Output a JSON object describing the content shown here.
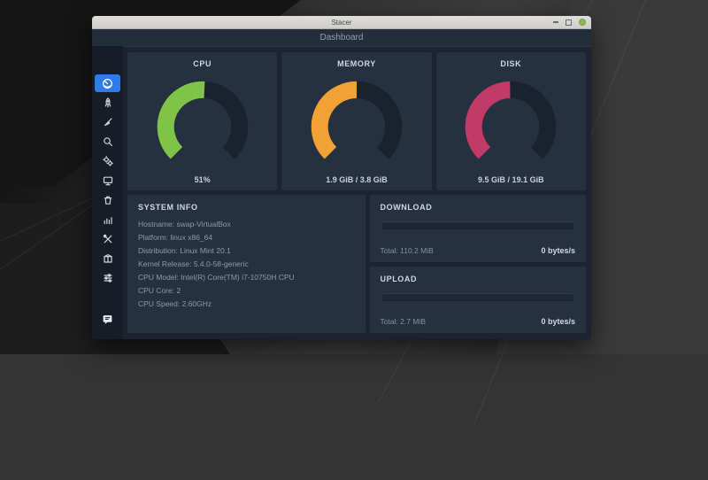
{
  "window": {
    "title": "Stacer",
    "controls": {
      "minimize": "minimize",
      "maximize": "maximize",
      "close": "close"
    }
  },
  "header": {
    "title": "Dashboard"
  },
  "sidebar": {
    "items": [
      {
        "id": "dashboard",
        "icon": "speedometer-icon",
        "active": true
      },
      {
        "id": "startup-apps",
        "icon": "rocket-icon",
        "active": false
      },
      {
        "id": "system-cleaner",
        "icon": "broom-icon",
        "active": false
      },
      {
        "id": "search",
        "icon": "search-icon",
        "active": false
      },
      {
        "id": "services",
        "icon": "gears-icon",
        "active": false
      },
      {
        "id": "processes",
        "icon": "monitor-icon",
        "active": false
      },
      {
        "id": "uninstaller",
        "icon": "trash-icon",
        "active": false
      },
      {
        "id": "resources",
        "icon": "chart-icon",
        "active": false
      },
      {
        "id": "helpers",
        "icon": "tools-icon",
        "active": false
      },
      {
        "id": "apt-repository",
        "icon": "package-icon",
        "active": false
      },
      {
        "id": "settings",
        "icon": "sliders-icon",
        "active": false
      }
    ],
    "bottom_item": {
      "id": "feedback",
      "icon": "feedback-icon"
    }
  },
  "gauges": [
    {
      "title": "CPU",
      "value_label": "51%",
      "percent": 51.0,
      "color": "#7fc348"
    },
    {
      "title": "MEMORY",
      "value_label": "1.9 GiB / 3.8 GiB",
      "percent": 50.0,
      "color": "#f2a235"
    },
    {
      "title": "DISK",
      "value_label": "9.5 GiB / 19.1 GiB",
      "percent": 49.7,
      "color": "#c23a68"
    }
  ],
  "gauge_style": {
    "track_color": "#1a222e"
  },
  "system_info": {
    "title": "SYSTEM INFO",
    "lines": [
      "Hostname: swap-VirtualBox",
      "Platform: linux x86_64",
      "Distribution: Linux Mint 20.1",
      "Kernel Release: 5.4.0-58-generic",
      "CPU Model: Intel(R) Core(TM) i7-10750H CPU",
      "CPU Core: 2",
      "CPU Speed: 2.60GHz"
    ]
  },
  "network": {
    "download": {
      "title": "DOWNLOAD",
      "total": "Total: 110.2 MiB",
      "rate": "0 bytes/s",
      "progress_percent": 0
    },
    "upload": {
      "title": "UPLOAD",
      "total": "Total: 2.7 MiB",
      "rate": "0 bytes/s",
      "progress_percent": 0
    }
  },
  "colors": {
    "accent_blue": "#2e7ceb",
    "cpu_green": "#7fc348",
    "memory_orange": "#f2a235",
    "disk_pink": "#c23a68",
    "close_button_green": "#8fb653"
  }
}
